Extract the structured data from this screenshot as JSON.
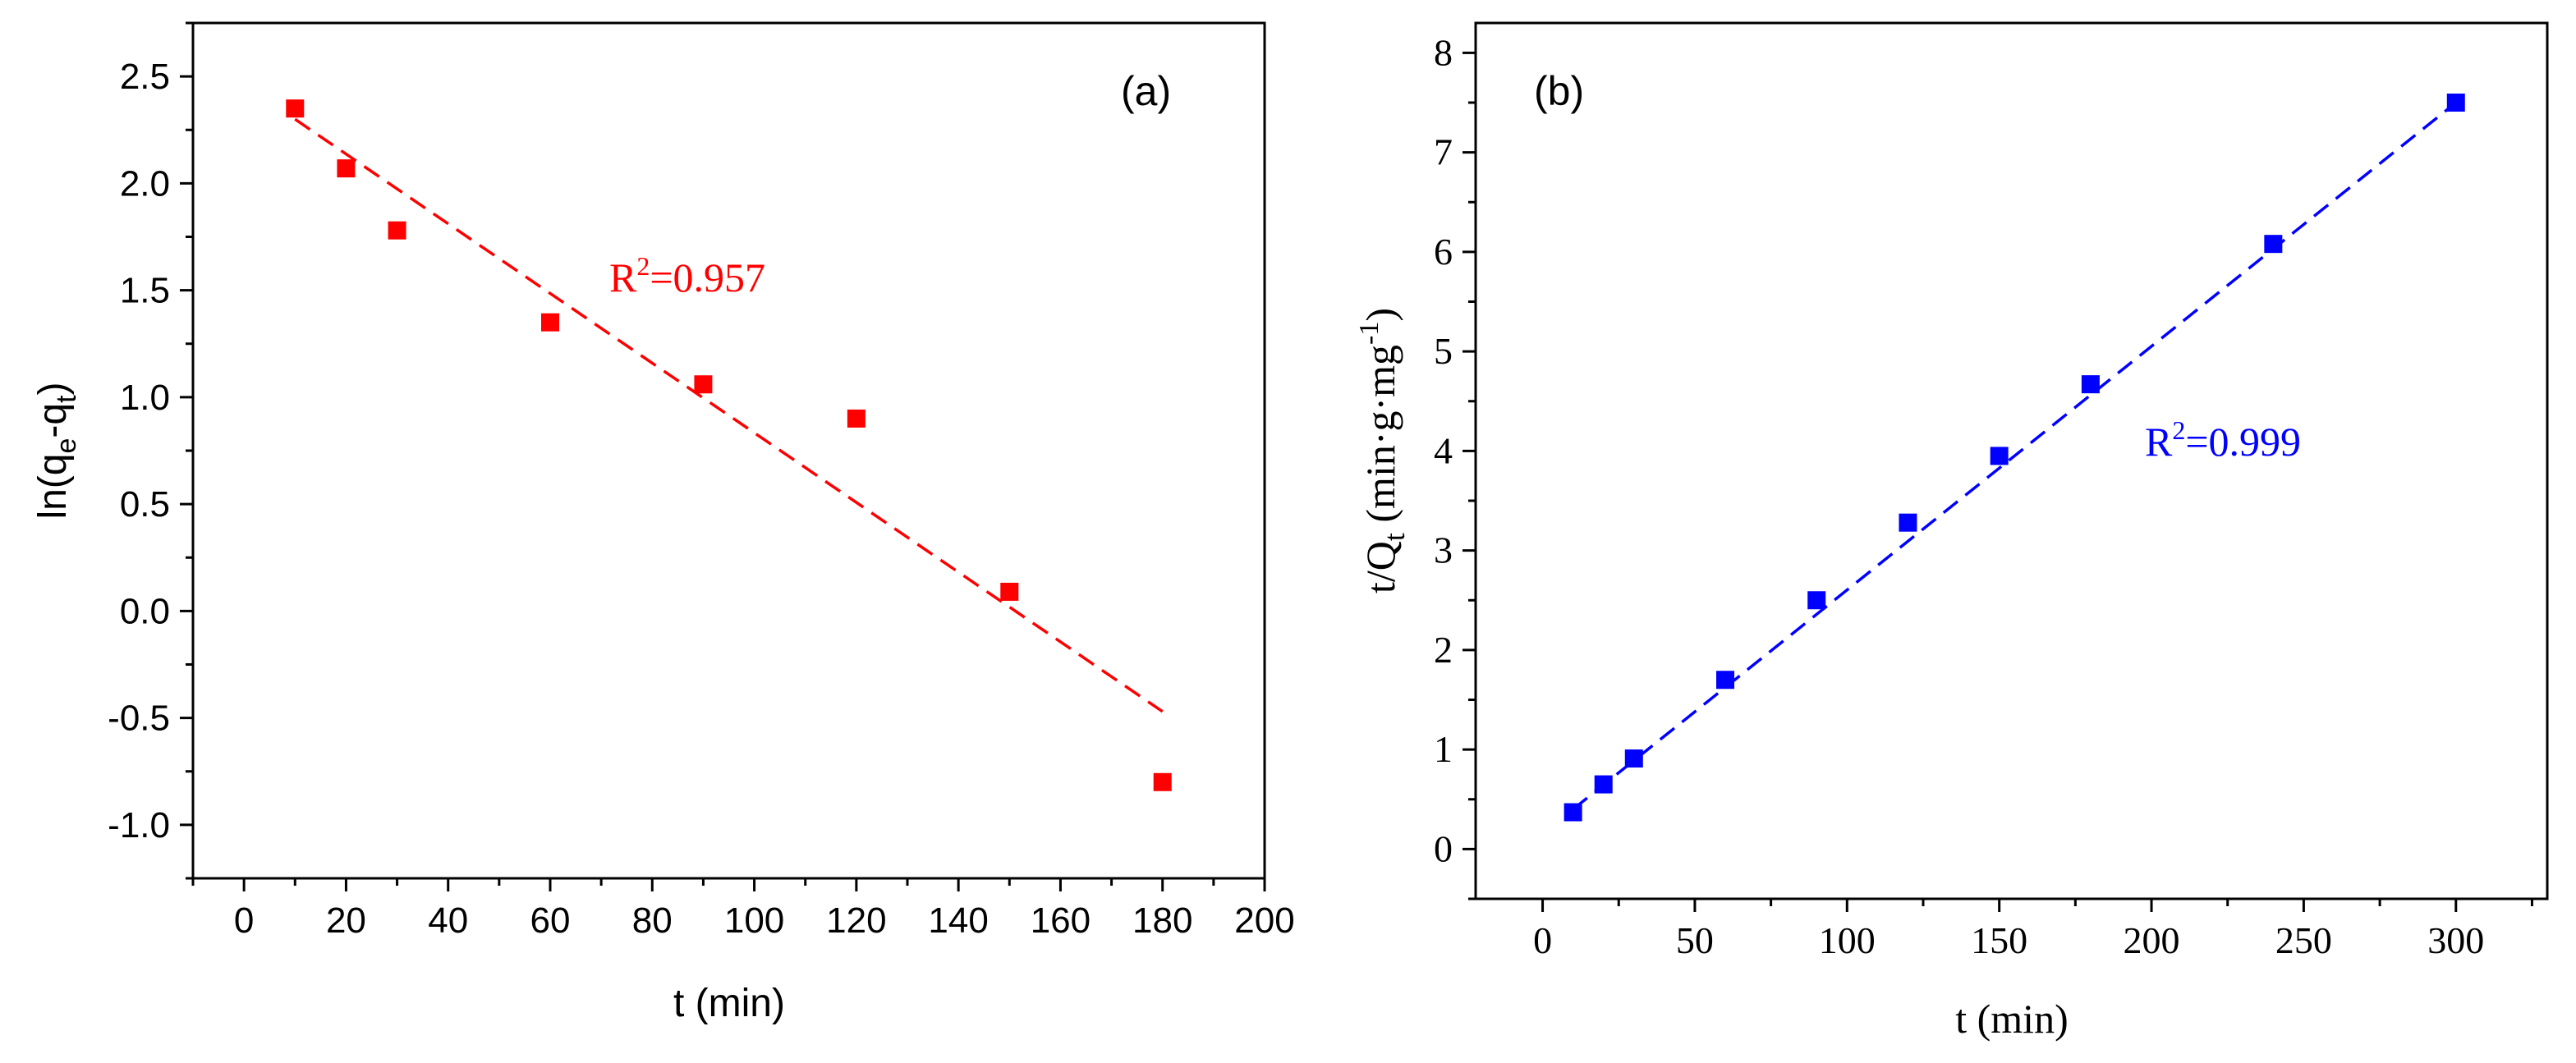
{
  "chart_data": [
    {
      "type": "scatter",
      "panel_label": "(a)",
      "xlabel": "t (min)",
      "ylabel": "ln(qₑ-qₜ)",
      "xlim": [
        -10,
        200
      ],
      "ylim": [
        -1.25,
        2.75
      ],
      "xticks": [
        0,
        20,
        40,
        60,
        80,
        100,
        120,
        140,
        160,
        180,
        200
      ],
      "yticks": [
        -1.0,
        -0.5,
        0.0,
        0.5,
        1.0,
        1.5,
        2.0,
        2.5
      ],
      "ytick_labels": [
        "-1.0",
        "-0.5",
        "0.0",
        "0.5",
        "1.0",
        "1.5",
        "2.0",
        "2.5"
      ],
      "grid": false,
      "color": "#ff0000",
      "series": [
        {
          "x": [
            10,
            20,
            30,
            60,
            90,
            120,
            150,
            180
          ],
          "y": [
            2.35,
            2.07,
            1.78,
            1.35,
            1.06,
            0.9,
            0.09,
            -0.8
          ]
        }
      ],
      "fit_line": {
        "x": [
          10,
          180
        ],
        "y": [
          2.3,
          -0.47
        ]
      },
      "annotation": {
        "text_main": "R",
        "text_sup": "2",
        "text_rest": "=0.957"
      }
    },
    {
      "type": "scatter",
      "panel_label": "(b)",
      "xlabel": "t (min)",
      "ylabel": "t/Qt (min·g·mg⁻¹)",
      "xlim": [
        -22,
        330
      ],
      "ylim": [
        -0.5,
        8.3
      ],
      "xticks": [
        0,
        50,
        100,
        150,
        200,
        250,
        300
      ],
      "yticks": [
        0,
        1,
        2,
        3,
        4,
        5,
        6,
        7,
        8
      ],
      "grid": false,
      "color": "#0000ff",
      "series": [
        {
          "x": [
            10,
            20,
            30,
            60,
            90,
            120,
            150,
            180,
            240,
            300
          ],
          "y": [
            0.37,
            0.65,
            0.91,
            1.7,
            2.5,
            3.28,
            3.95,
            4.67,
            6.08,
            7.5
          ]
        }
      ],
      "fit_line": {
        "x": [
          10,
          300
        ],
        "y": [
          0.4,
          7.5
        ]
      },
      "annotation": {
        "text_main": "R",
        "text_sup": "2",
        "text_rest": "=0.999"
      }
    }
  ]
}
